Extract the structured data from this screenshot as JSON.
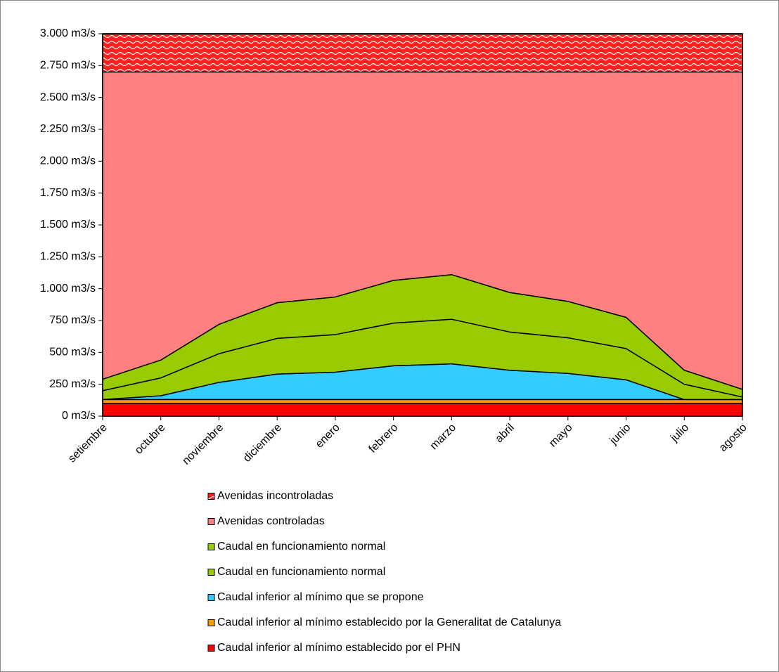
{
  "chart_data": {
    "type": "stacked_area",
    "categories": [
      "setiembre",
      "octubre",
      "noviembre",
      "diciembre",
      "enero",
      "febrero",
      "marzo",
      "abril",
      "mayo",
      "junio",
      "julio",
      "agosto"
    ],
    "ylim": [
      0,
      3000
    ],
    "yticks": [
      {
        "value": 0,
        "label": "0 m3/s"
      },
      {
        "value": 250,
        "label": "250 m3/s"
      },
      {
        "value": 500,
        "label": "500 m3/s"
      },
      {
        "value": 750,
        "label": "750 m3/s"
      },
      {
        "value": 1000,
        "label": "1.000 m3/s"
      },
      {
        "value": 1250,
        "label": "1.250 m3/s"
      },
      {
        "value": 1500,
        "label": "1.500 m3/s"
      },
      {
        "value": 1750,
        "label": "1.750 m3/s"
      },
      {
        "value": 2000,
        "label": "2.000 m3/s"
      },
      {
        "value": 2250,
        "label": "2.250 m3/s"
      },
      {
        "value": 2500,
        "label": "2.500 m3/s"
      },
      {
        "value": 2750,
        "label": "2.750 m3/s"
      },
      {
        "value": 3000,
        "label": "3.000 m3/s"
      }
    ],
    "series": [
      {
        "name": "Avenidas incontroladas",
        "color": "#ff2020",
        "pattern": "wave",
        "values": [
          300,
          300,
          300,
          300,
          300,
          300,
          300,
          300,
          300,
          300,
          300,
          300
        ]
      },
      {
        "name": "Avenidas controladas",
        "color": "#ff8080",
        "values": [
          2410,
          2260,
          1980,
          1810,
          1765,
          1635,
          1590,
          1730,
          1800,
          1925,
          2340,
          2490
        ]
      },
      {
        "name": "Caudal en funcionamiento normal",
        "color": "#99cc00",
        "values": [
          90,
          140,
          230,
          280,
          295,
          335,
          350,
          310,
          285,
          245,
          110,
          60
        ]
      },
      {
        "name": "Caudal en funcionamiento normal",
        "color": "#99cc00",
        "values": [
          70,
          140,
          225,
          280,
          295,
          335,
          350,
          300,
          280,
          245,
          120,
          20
        ]
      },
      {
        "name": "Caudal inferior al mínimo que se propone",
        "color": "#33ccff",
        "values": [
          0,
          30,
          135,
          200,
          215,
          265,
          280,
          230,
          205,
          155,
          0,
          0
        ]
      },
      {
        "name": "Caudal inferior al  mínimo establecido por la Generalitat de Catalunya",
        "color": "#ff9900",
        "values": [
          30,
          30,
          30,
          30,
          30,
          30,
          30,
          30,
          30,
          30,
          30,
          30
        ]
      },
      {
        "name": "Caudal inferior al mínimo establecido por el PHN",
        "color": "#ff0000",
        "values": [
          100,
          100,
          100,
          100,
          100,
          100,
          100,
          100,
          100,
          100,
          100,
          100
        ]
      }
    ]
  }
}
